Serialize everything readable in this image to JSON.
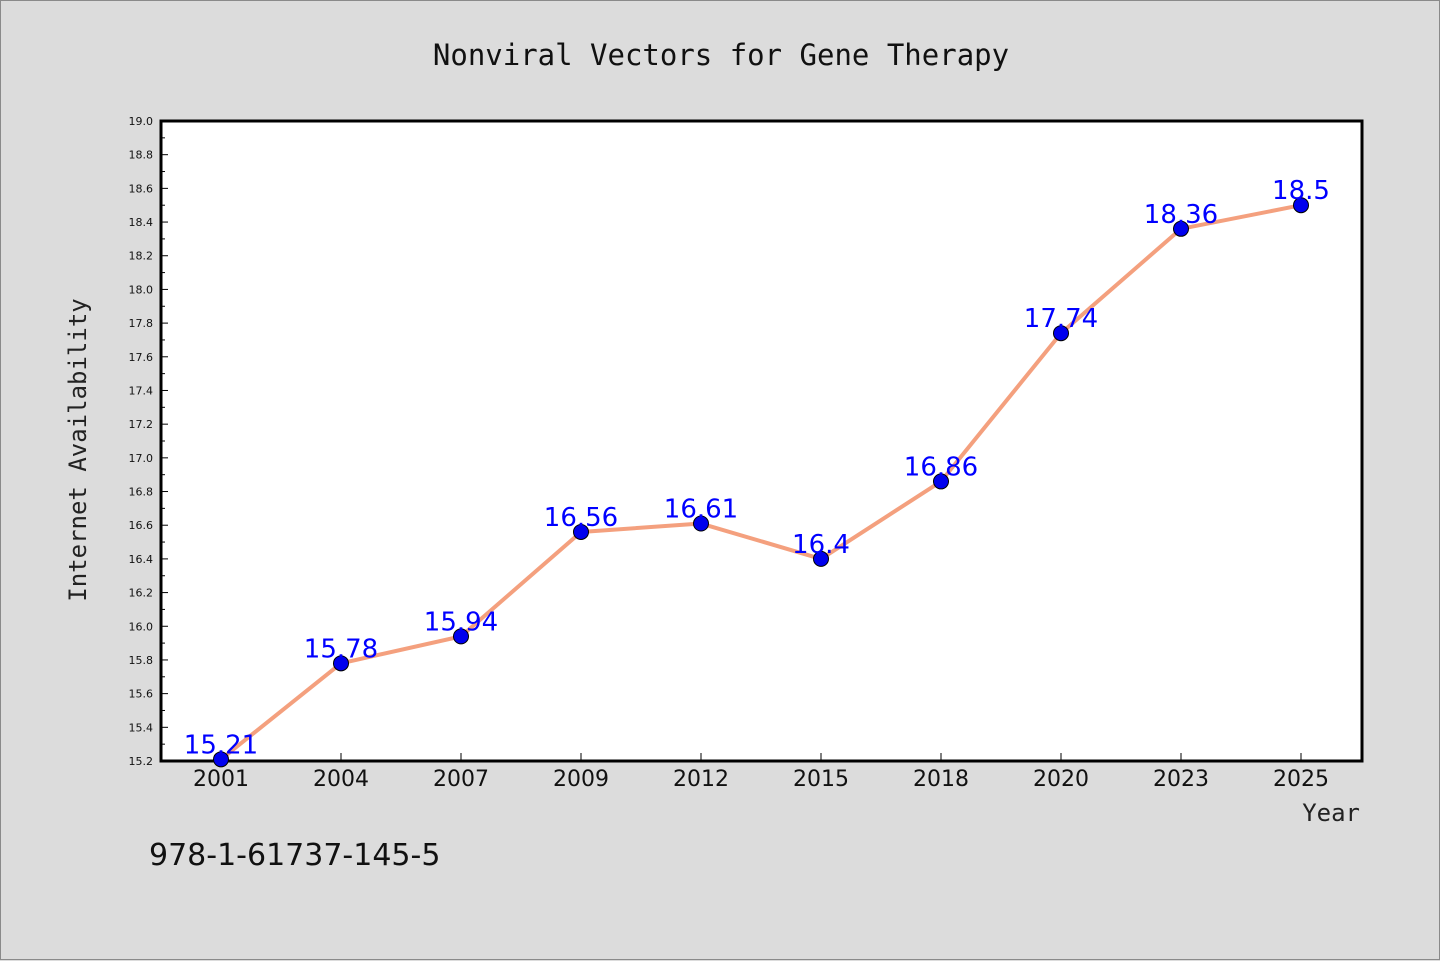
{
  "chart_data": {
    "type": "line",
    "title": "Nonviral Vectors for Gene Therapy",
    "xlabel": "Year",
    "ylabel": "Internet Availability",
    "categories": [
      "2001",
      "2004",
      "2007",
      "2009",
      "2012",
      "2015",
      "2018",
      "2020",
      "2023",
      "2025"
    ],
    "series": [
      {
        "values": [
          15.21,
          15.78,
          15.94,
          16.56,
          16.61,
          16.4,
          16.86,
          17.74,
          18.36,
          18.5
        ]
      }
    ],
    "data_labels": [
      "15.21",
      "15.78",
      "15.94",
      "16.56",
      "16.61",
      "16.4",
      "16.86",
      "17.74",
      "18.36",
      "18.5"
    ],
    "ylim": [
      15.2,
      19.0
    ],
    "yticks": [
      "15.2",
      "15.4",
      "15.6",
      "15.8",
      "16.0",
      "16.2",
      "16.4",
      "16.6",
      "16.8",
      "17.0",
      "17.2",
      "17.4",
      "17.6",
      "17.8",
      "18.0",
      "18.2",
      "18.4",
      "18.6",
      "18.8",
      "19.0"
    ],
    "grid": false,
    "legend": "none",
    "line_color": "#f4a07e",
    "marker_color": "#0000ee",
    "label_color": "#0000ff",
    "annotation": "978-1-61737-145-5"
  }
}
